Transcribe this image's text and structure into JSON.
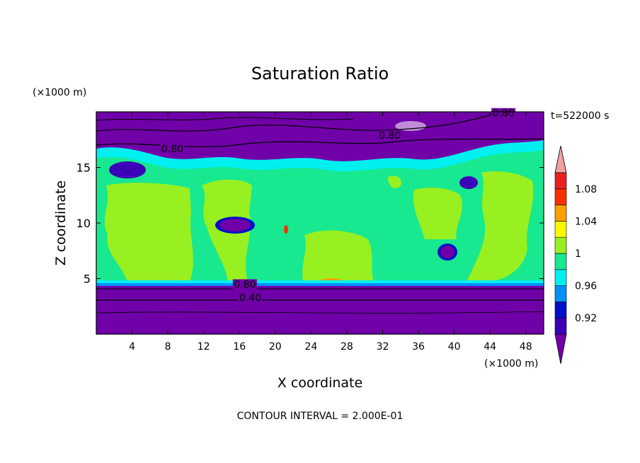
{
  "chart_data": {
    "type": "heatmap",
    "title": "Saturation Ratio",
    "xlabel": "X coordinate",
    "ylabel": "Z coordinate",
    "x_unit": "(×1000 m)",
    "y_unit": "(×1000 m)",
    "time_label": "t=522000 s",
    "footer": "CONTOUR INTERVAL = 2.000E-01",
    "xlim": [
      0,
      50
    ],
    "ylim": [
      0,
      20
    ],
    "x_ticks": [
      4,
      8,
      12,
      16,
      20,
      24,
      28,
      32,
      36,
      40,
      44,
      48
    ],
    "y_ticks": [
      5,
      10,
      15
    ],
    "colorbar": {
      "bounds": [
        0.9,
        0.92,
        0.94,
        0.96,
        0.98,
        1.0,
        1.02,
        1.04,
        1.06,
        1.08,
        1.1
      ],
      "colors": [
        "#7000a8",
        "#3c00b8",
        "#0010c8",
        "#0090f8",
        "#00f0f0",
        "#18e890",
        "#98f020",
        "#f8f800",
        "#f8a000",
        "#f83000",
        "#e82020",
        "#f0a0a0"
      ],
      "labels": [
        {
          "value": 0.92,
          "text": "0.92"
        },
        {
          "value": 0.96,
          "text": "0.96"
        },
        {
          "value": 1.0,
          "text": "1"
        },
        {
          "value": 1.04,
          "text": "1.04"
        },
        {
          "value": 1.08,
          "text": "1.08"
        }
      ]
    },
    "contour_labels": [
      {
        "text": "0.80",
        "x": 45.5,
        "y": 19.7
      },
      {
        "text": "0.80",
        "x": 32.8,
        "y": 17.7
      },
      {
        "text": "0.80",
        "x": 8.5,
        "y": 16.5
      },
      {
        "text": "0.80",
        "x": 16.6,
        "y": 4.3
      },
      {
        "text": "0.40",
        "x": 17.2,
        "y": 3.1
      }
    ]
  }
}
